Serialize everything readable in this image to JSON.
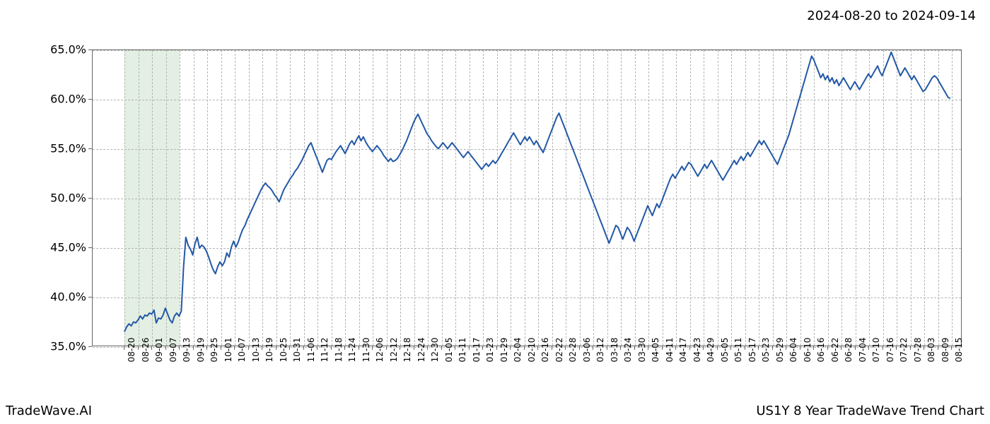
{
  "header": {
    "date_range": "2024-08-20 to 2024-09-14"
  },
  "footer": {
    "left": "TradeWave.AI",
    "right": "US1Y 8 Year TradeWave Trend Chart"
  },
  "chart": {
    "type": "line",
    "background_color": "#ffffff",
    "grid_color": "#b5b5b5",
    "grid_dash": "3,3",
    "border_color": "#666666",
    "line_color": "#2358a6",
    "line_width": 2,
    "highlight_band": {
      "start_index": 0,
      "end_index": 4,
      "color": "rgba(144,190,144,0.25)"
    },
    "ylim": [
      35,
      65
    ],
    "ytick_step": 5,
    "yticks": [
      "35.0%",
      "40.0%",
      "45.0%",
      "50.0%",
      "55.0%",
      "60.0%",
      "65.0%"
    ],
    "x_labels": [
      "08-20",
      "08-26",
      "09-01",
      "09-07",
      "09-13",
      "09-19",
      "09-25",
      "10-01",
      "10-07",
      "10-13",
      "10-19",
      "10-25",
      "10-31",
      "11-06",
      "11-12",
      "11-18",
      "11-24",
      "11-30",
      "12-06",
      "12-12",
      "12-18",
      "12-24",
      "12-30",
      "01-05",
      "01-11",
      "01-17",
      "01-23",
      "01-29",
      "02-04",
      "02-10",
      "02-16",
      "02-22",
      "02-28",
      "03-06",
      "03-12",
      "03-18",
      "03-24",
      "03-30",
      "04-05",
      "04-11",
      "04-17",
      "04-23",
      "04-29",
      "05-05",
      "05-11",
      "05-17",
      "05-23",
      "05-29",
      "06-04",
      "06-10",
      "06-16",
      "06-22",
      "06-28",
      "07-04",
      "07-10",
      "07-16",
      "07-22",
      "07-28",
      "08-03",
      "08-09",
      "08-15"
    ],
    "series": [
      {
        "name": "US1Y",
        "color": "#2358a6",
        "values": [
          36.4,
          36.9,
          37.2,
          37.0,
          37.4,
          37.3,
          37.6,
          38.0,
          37.7,
          38.1,
          38.0,
          38.3,
          38.2,
          38.6,
          37.3,
          37.8,
          37.7,
          38.1,
          38.8,
          38.2,
          37.6,
          37.3,
          38.0,
          38.3,
          38.0,
          38.5,
          43.0,
          46.0,
          45.2,
          44.8,
          44.2,
          45.3,
          46.0,
          44.9,
          45.2,
          45.0,
          44.6,
          44.0,
          43.3,
          42.7,
          42.3,
          43.0,
          43.5,
          43.1,
          43.5,
          44.4,
          44.0,
          45.0,
          45.6,
          45.0,
          45.5,
          46.2,
          46.8,
          47.2,
          47.8,
          48.3,
          48.8,
          49.3,
          49.8,
          50.3,
          50.8,
          51.2,
          51.5,
          51.2,
          51.0,
          50.7,
          50.3,
          50.0,
          49.6,
          50.2,
          50.8,
          51.2,
          51.6,
          52.0,
          52.3,
          52.7,
          53.0,
          53.4,
          53.8,
          54.3,
          54.8,
          55.3,
          55.6,
          55.0,
          54.4,
          53.8,
          53.2,
          52.6,
          53.2,
          53.8,
          54.0,
          53.9,
          54.3,
          54.7,
          55.0,
          55.3,
          54.9,
          54.5,
          55.0,
          55.5,
          55.8,
          55.4,
          55.9,
          56.3,
          55.8,
          56.2,
          55.7,
          55.3,
          55.0,
          54.7,
          55.0,
          55.3,
          55.0,
          54.7,
          54.3,
          54.0,
          53.7,
          54.0,
          53.7,
          53.8,
          54.0,
          54.4,
          54.8,
          55.3,
          55.8,
          56.4,
          57.0,
          57.6,
          58.1,
          58.5,
          58.0,
          57.5,
          57.0,
          56.5,
          56.2,
          55.8,
          55.5,
          55.2,
          55.0,
          55.3,
          55.6,
          55.3,
          55.0,
          55.3,
          55.6,
          55.3,
          55.0,
          54.7,
          54.4,
          54.1,
          54.4,
          54.7,
          54.4,
          54.1,
          53.8,
          53.5,
          53.2,
          52.9,
          53.2,
          53.5,
          53.2,
          53.5,
          53.8,
          53.5,
          53.8,
          54.2,
          54.6,
          55.0,
          55.4,
          55.8,
          56.2,
          56.6,
          56.2,
          55.8,
          55.4,
          55.8,
          56.2,
          55.8,
          56.2,
          55.8,
          55.4,
          55.8,
          55.4,
          55.0,
          54.6,
          55.2,
          55.8,
          56.4,
          57.0,
          57.6,
          58.2,
          58.6,
          58.0,
          57.4,
          56.8,
          56.2,
          55.6,
          55.0,
          54.4,
          53.8,
          53.2,
          52.6,
          52.0,
          51.4,
          50.8,
          50.2,
          49.6,
          49.0,
          48.4,
          47.8,
          47.2,
          46.6,
          46.0,
          45.4,
          46.0,
          46.6,
          47.2,
          47.0,
          46.4,
          45.8,
          46.4,
          47.0,
          46.7,
          46.2,
          45.6,
          46.2,
          46.8,
          47.4,
          48.0,
          48.6,
          49.2,
          48.7,
          48.2,
          48.8,
          49.4,
          49.0,
          49.6,
          50.2,
          50.8,
          51.4,
          52.0,
          52.4,
          52.0,
          52.4,
          52.8,
          53.2,
          52.8,
          53.2,
          53.6,
          53.4,
          53.0,
          52.6,
          52.2,
          52.6,
          53.0,
          53.4,
          53.0,
          53.4,
          53.8,
          53.4,
          53.0,
          52.6,
          52.2,
          51.8,
          52.2,
          52.6,
          53.0,
          53.4,
          53.8,
          53.4,
          53.8,
          54.2,
          53.8,
          54.2,
          54.6,
          54.2,
          54.6,
          55.0,
          55.4,
          55.8,
          55.4,
          55.8,
          55.4,
          55.0,
          54.6,
          54.2,
          53.8,
          53.4,
          54.0,
          54.6,
          55.2,
          55.8,
          56.4,
          57.2,
          58.0,
          58.8,
          59.6,
          60.4,
          61.2,
          62.0,
          62.8,
          63.6,
          64.4,
          64.0,
          63.4,
          62.8,
          62.2,
          62.6,
          62.0,
          62.4,
          61.8,
          62.2,
          61.6,
          62.0,
          61.4,
          61.8,
          62.2,
          61.8,
          61.4,
          61.0,
          61.4,
          61.8,
          61.4,
          61.0,
          61.4,
          61.8,
          62.2,
          62.6,
          62.2,
          62.6,
          63.0,
          63.4,
          62.8,
          62.4,
          63.0,
          63.6,
          64.2,
          64.8,
          64.2,
          63.6,
          63.0,
          62.4,
          62.8,
          63.2,
          62.8,
          62.4,
          62.0,
          62.4,
          62.0,
          61.6,
          61.2,
          60.8,
          61.0,
          61.4,
          61.8,
          62.2,
          62.4,
          62.2,
          61.8,
          61.4,
          61.0,
          60.6,
          60.2,
          60.1
        ]
      }
    ],
    "label_fontsize": 16,
    "xlabel_fontsize": 12,
    "title_fontsize": 18
  }
}
